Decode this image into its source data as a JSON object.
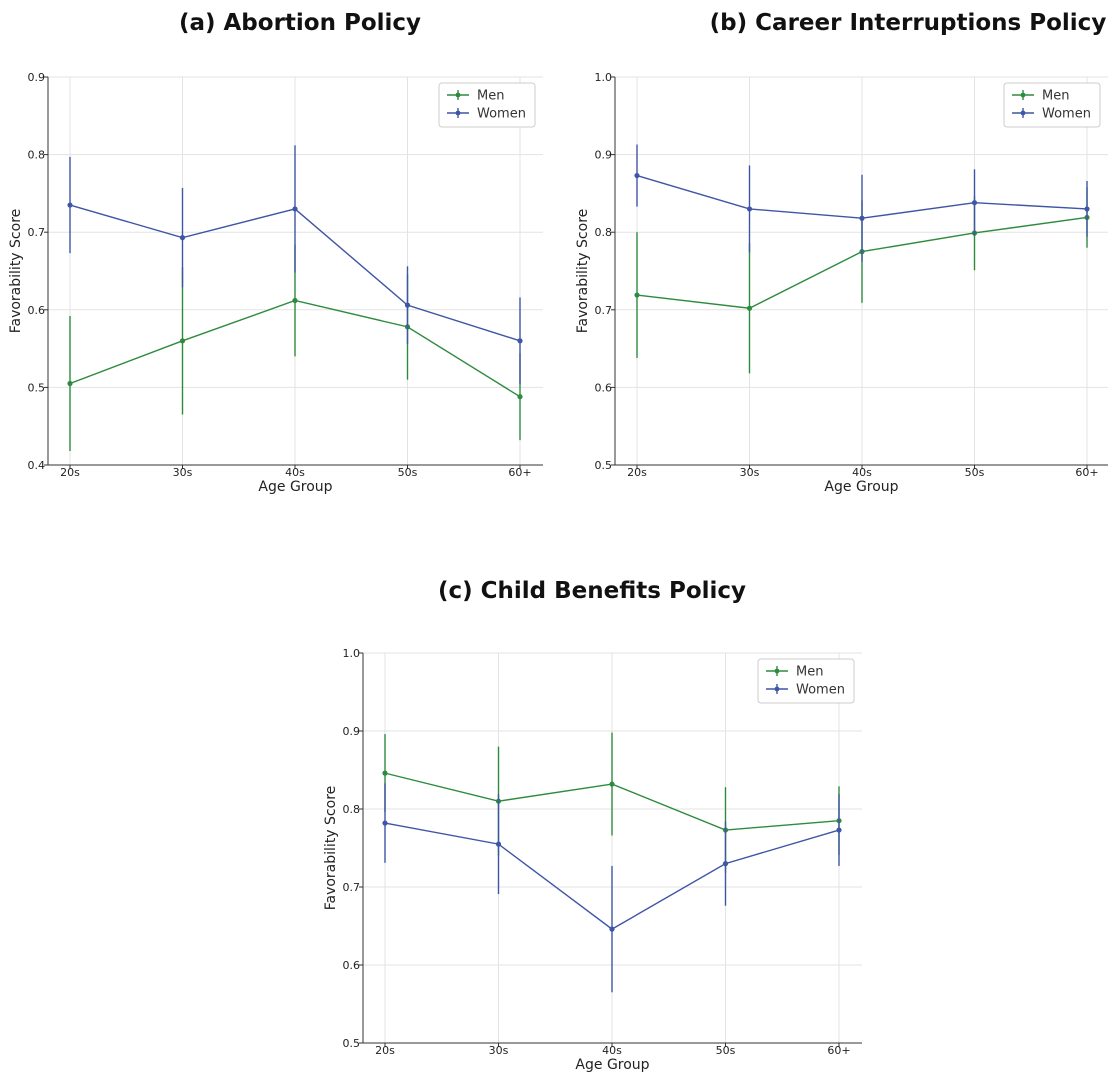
{
  "colors": {
    "men": "#2e8b3e",
    "women": "#3f55a6",
    "grid": "#e3e3e3",
    "axis": "#333333"
  },
  "chart_data": [
    {
      "type": "line",
      "title": "(a) Abortion Policy",
      "xlabel": "Age Group",
      "ylabel": "Favorability Score",
      "categories": [
        "20s",
        "30s",
        "40s",
        "50s",
        "60+"
      ],
      "ylim": [
        0.4,
        0.9
      ],
      "yticks": [
        "0.4",
        "0.5",
        "0.6",
        "0.7",
        "0.8",
        "0.9"
      ],
      "grid": true,
      "legend": "top-right",
      "series": [
        {
          "name": "Men",
          "color": "#2e8b3e",
          "values": [
            0.505,
            0.56,
            0.612,
            0.578,
            0.488
          ],
          "err": [
            0.087,
            0.095,
            0.072,
            0.068,
            0.056
          ]
        },
        {
          "name": "Women",
          "color": "#3f55a6",
          "values": [
            0.735,
            0.693,
            0.73,
            0.606,
            0.56
          ],
          "err": [
            0.062,
            0.064,
            0.082,
            0.05,
            0.056
          ]
        }
      ]
    },
    {
      "type": "line",
      "title": "(b) Career Interruptions Policy",
      "xlabel": "Age Group",
      "ylabel": "Favorability Score",
      "categories": [
        "20s",
        "30s",
        "40s",
        "50s",
        "60+"
      ],
      "ylim": [
        0.5,
        1.0
      ],
      "yticks": [
        "0.5",
        "0.6",
        "0.7",
        "0.8",
        "0.9",
        "1.0"
      ],
      "grid": true,
      "legend": "top-right",
      "series": [
        {
          "name": "Men",
          "color": "#2e8b3e",
          "values": [
            0.719,
            0.702,
            0.775,
            0.799,
            0.819
          ],
          "err": [
            0.081,
            0.084,
            0.066,
            0.048,
            0.039
          ]
        },
        {
          "name": "Women",
          "color": "#3f55a6",
          "values": [
            0.873,
            0.83,
            0.818,
            0.838,
            0.83
          ],
          "err": [
            0.04,
            0.056,
            0.056,
            0.043,
            0.036
          ]
        }
      ]
    },
    {
      "type": "line",
      "title": "(c) Child Benefits Policy",
      "xlabel": "Age Group",
      "ylabel": "Favorability Score",
      "categories": [
        "20s",
        "30s",
        "40s",
        "50s",
        "60+"
      ],
      "ylim": [
        0.5,
        1.0
      ],
      "yticks": [
        "0.5",
        "0.6",
        "0.7",
        "0.8",
        "0.9",
        "1.0"
      ],
      "grid": true,
      "legend": "top-right",
      "series": [
        {
          "name": "Men",
          "color": "#2e8b3e",
          "values": [
            0.846,
            0.81,
            0.832,
            0.773,
            0.785
          ],
          "err": [
            0.05,
            0.07,
            0.066,
            0.055,
            0.044
          ]
        },
        {
          "name": "Women",
          "color": "#3f55a6",
          "values": [
            0.782,
            0.755,
            0.646,
            0.73,
            0.773
          ],
          "err": [
            0.051,
            0.064,
            0.081,
            0.054,
            0.046
          ]
        }
      ]
    }
  ]
}
